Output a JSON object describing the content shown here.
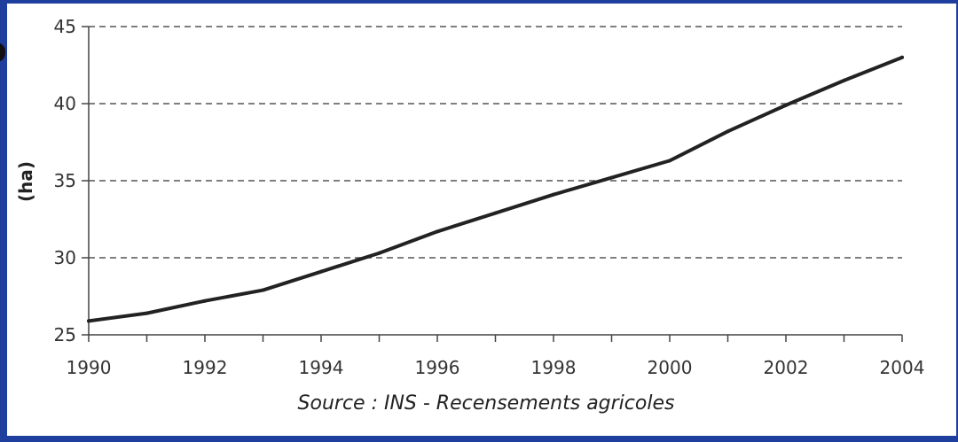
{
  "chart_data": {
    "type": "line",
    "title": "",
    "xlabel": "",
    "ylabel": "(ha)",
    "source": "Source : INS - Recensements agricoles",
    "xlim": [
      1990,
      2004
    ],
    "ylim": [
      25,
      45
    ],
    "x_ticks": [
      1990,
      1992,
      1994,
      1996,
      1998,
      2000,
      2002,
      2004
    ],
    "y_ticks": [
      25,
      30,
      35,
      40,
      45
    ],
    "grid": "horizontal-dashed",
    "series": [
      {
        "x": [
          1990,
          1991,
          1992,
          1993,
          1994,
          1995,
          1996,
          1997,
          1998,
          1999,
          2000,
          2001,
          2002,
          2003,
          2004
        ],
        "y": [
          25.9,
          26.4,
          27.2,
          27.9,
          29.1,
          30.3,
          31.7,
          32.9,
          34.1,
          35.2,
          36.3,
          38.2,
          39.9,
          41.5,
          43.0
        ],
        "color": "#222222"
      }
    ]
  }
}
